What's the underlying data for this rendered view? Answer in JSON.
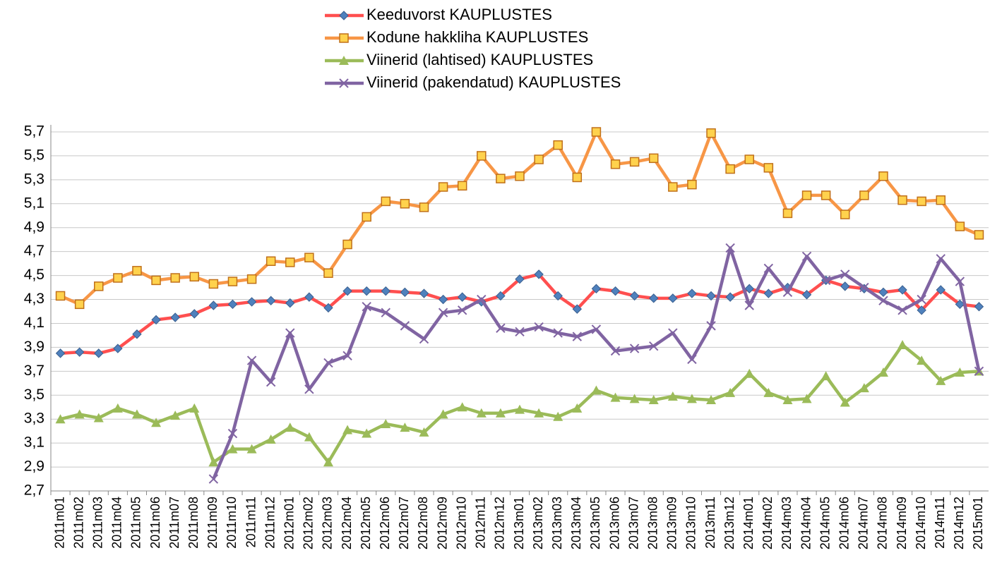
{
  "chart_data": {
    "type": "line",
    "categories": [
      "2011m01",
      "2011m02",
      "2011m03",
      "2011m04",
      "2011m05",
      "2011m06",
      "2011m07",
      "2011m08",
      "2011m09",
      "2011m10",
      "2011m11",
      "2011m12",
      "2012m01",
      "2012m02",
      "2012m03",
      "2012m04",
      "2012m05",
      "2012m06",
      "2012m07",
      "2012m08",
      "2012m09",
      "2012m10",
      "2012m11",
      "2012m12",
      "2013m01",
      "2013m02",
      "2013m03",
      "2013m04",
      "2013m05",
      "2013m06",
      "2013m07",
      "2013m08",
      "2013m09",
      "2013m10",
      "2013m11",
      "2013m12",
      "2014m01",
      "2014m02",
      "2014m03",
      "2014m04",
      "2014m05",
      "2014m06",
      "2014m07",
      "2014m08",
      "2014m09",
      "2014m10",
      "2014m11",
      "2014m12",
      "2015m01"
    ],
    "series": [
      {
        "name": "Keeduvorst KAUPLUSTES",
        "color": "#ff4f4f",
        "marker": "diamond",
        "marker_color": "#4f81bd",
        "values": [
          3.85,
          3.86,
          3.85,
          3.89,
          4.01,
          4.13,
          4.15,
          4.18,
          4.25,
          4.26,
          4.28,
          4.29,
          4.27,
          4.32,
          4.23,
          4.37,
          4.37,
          4.37,
          4.36,
          4.35,
          4.3,
          4.32,
          4.28,
          4.33,
          4.47,
          4.51,
          4.33,
          4.22,
          4.39,
          4.37,
          4.33,
          4.31,
          4.31,
          4.35,
          4.33,
          4.32,
          4.39,
          4.35,
          4.4,
          4.34,
          4.46,
          4.41,
          4.39,
          4.36,
          4.38,
          4.21,
          4.38,
          4.26,
          4.24
        ]
      },
      {
        "name": "Kodune hakkliha KAUPLUSTES",
        "color": "#f79646",
        "marker": "square",
        "marker_color": "#ffd24d",
        "values": [
          4.33,
          4.26,
          4.41,
          4.48,
          4.54,
          4.46,
          4.48,
          4.49,
          4.43,
          4.45,
          4.47,
          4.62,
          4.61,
          4.65,
          4.52,
          4.76,
          4.99,
          5.12,
          5.1,
          5.07,
          5.24,
          5.25,
          5.5,
          5.31,
          5.33,
          5.47,
          5.59,
          5.32,
          5.7,
          5.43,
          5.45,
          5.48,
          5.24,
          5.26,
          5.69,
          5.39,
          5.47,
          5.4,
          5.02,
          5.17,
          5.17,
          5.01,
          5.17,
          5.33,
          5.13,
          5.12,
          5.13,
          4.91,
          4.84
        ]
      },
      {
        "name": "Viinerid (lahtised) KAUPLUSTES",
        "color": "#9bbb59",
        "marker": "triangle",
        "marker_color": "#9bbb59",
        "values": [
          3.3,
          3.34,
          3.31,
          3.39,
          3.34,
          3.27,
          3.33,
          3.39,
          2.94,
          3.05,
          3.05,
          3.13,
          3.23,
          3.15,
          2.94,
          3.21,
          3.18,
          3.26,
          3.23,
          3.19,
          3.34,
          3.4,
          3.35,
          3.35,
          3.38,
          3.35,
          3.32,
          3.39,
          3.54,
          3.48,
          3.47,
          3.46,
          3.49,
          3.47,
          3.46,
          3.52,
          3.68,
          3.52,
          3.46,
          3.47,
          3.66,
          3.44,
          3.56,
          3.69,
          3.92,
          3.79,
          3.62,
          3.69,
          3.7
        ]
      },
      {
        "name": "Viinerid (pakendatud) KAUPLUSTES",
        "color": "#8064a2",
        "marker": "x",
        "marker_color": "#8064a2",
        "values": [
          null,
          null,
          null,
          null,
          null,
          null,
          null,
          null,
          2.8,
          3.18,
          3.79,
          3.61,
          4.02,
          3.55,
          3.77,
          3.83,
          4.24,
          4.19,
          4.08,
          3.97,
          4.19,
          4.21,
          4.3,
          4.06,
          4.03,
          4.07,
          4.02,
          3.99,
          4.05,
          3.87,
          3.89,
          3.91,
          4.02,
          3.8,
          4.08,
          4.73,
          4.25,
          4.56,
          4.36,
          4.66,
          4.46,
          4.51,
          4.4,
          4.29,
          4.21,
          4.3,
          4.64,
          4.45,
          3.7
        ]
      }
    ],
    "ylim": [
      2.7,
      5.7
    ],
    "yticks": [
      {
        "value": 2.7,
        "label": "2,7"
      },
      {
        "value": 2.9,
        "label": "2,9"
      },
      {
        "value": 3.1,
        "label": "3,1"
      },
      {
        "value": 3.3,
        "label": "3,3"
      },
      {
        "value": 3.5,
        "label": "3,5"
      },
      {
        "value": 3.7,
        "label": "3,7"
      },
      {
        "value": 3.9,
        "label": "3,9"
      },
      {
        "value": 4.1,
        "label": "4,1"
      },
      {
        "value": 4.3,
        "label": "4,3"
      },
      {
        "value": 4.5,
        "label": "4,5"
      },
      {
        "value": 4.7,
        "label": "4,7"
      },
      {
        "value": 4.9,
        "label": "4,9"
      },
      {
        "value": 5.1,
        "label": "5,1"
      },
      {
        "value": 5.3,
        "label": "5,3"
      },
      {
        "value": 5.5,
        "label": "5,5"
      },
      {
        "value": 5.7,
        "label": "5,7"
      }
    ],
    "grid": true,
    "legend": "top"
  }
}
